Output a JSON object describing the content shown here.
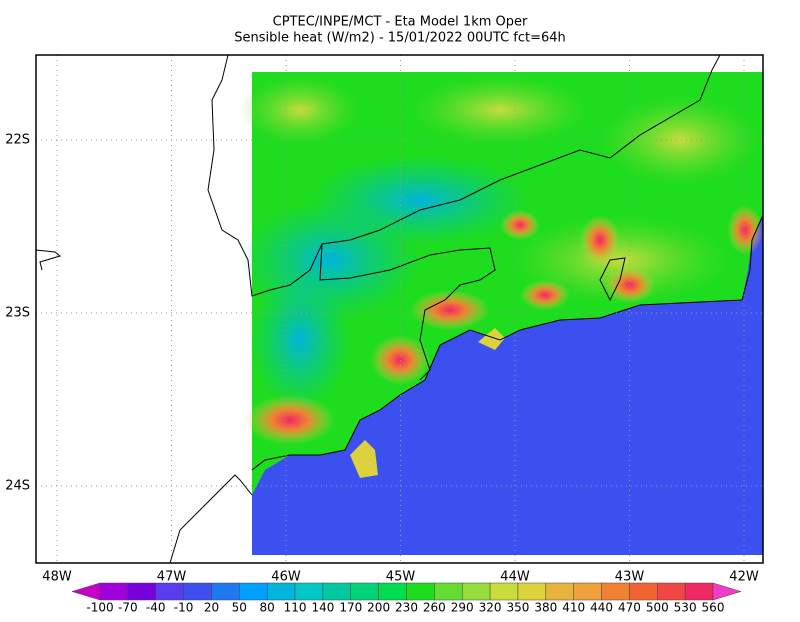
{
  "header": {
    "title": [
      "CPTEC/INPE/MCT -  Eta Model 1km Oper",
      "Sensible heat (W/m2) - 15/01/2022 00UTC fct=64h"
    ]
  },
  "lon_labels": [
    "48W",
    "47W",
    "46W",
    "45W",
    "44W",
    "43W",
    "42W"
  ],
  "lat_labels": [
    "22S",
    "23S",
    "24S"
  ],
  "colorbar": {
    "labels": [
      -100,
      -70,
      -40,
      -10,
      20,
      50,
      80,
      110,
      140,
      170,
      200,
      230,
      260,
      290,
      320,
      350,
      380,
      410,
      440,
      470,
      500,
      530,
      560
    ],
    "colors": [
      "#c800c8",
      "#a000dc",
      "#7800dc",
      "#5a3cf0",
      "#3c50f0",
      "#1e78f0",
      "#00a0ff",
      "#00b4dc",
      "#00c8c8",
      "#00c8a0",
      "#00d278",
      "#00dc50",
      "#1edc1e",
      "#64dc32",
      "#96dc3c",
      "#c8dc3c",
      "#dcd23c",
      "#e6b43c",
      "#f0a03c",
      "#f08232",
      "#f06432",
      "#f04646",
      "#f02864",
      "#f03cc8"
    ]
  }
}
